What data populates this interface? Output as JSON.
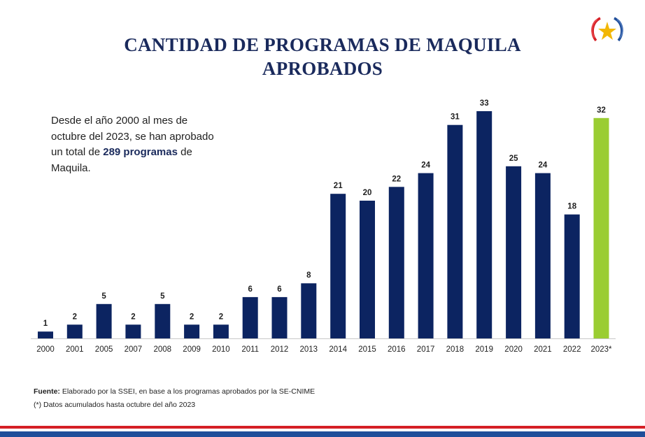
{
  "title_line1": "CANTIDAD DE PROGRAMAS DE MAQUILA",
  "title_line2": "APROBADOS",
  "note": {
    "text1": "Desde el año 2000 al mes de octubre del 2023, se han aprobado un total de ",
    "bold": "289 programas",
    "text2": " de Maquila."
  },
  "footer": {
    "source_label": "Fuente:",
    "source_text": " Elaborado por la SSEI, en base a los programas aprobados por la SE-CNIME",
    "footnote": "(*) Datos acumulados hasta octubre del año 2023"
  },
  "colors": {
    "bar": "#0c2461",
    "highlight": "#9acd32",
    "title": "#1a2a5c"
  },
  "chart_data": {
    "type": "bar",
    "categories": [
      "2000",
      "2001",
      "2005",
      "2007",
      "2008",
      "2009",
      "2010",
      "2011",
      "2012",
      "2013",
      "2014",
      "2015",
      "2016",
      "2017",
      "2018",
      "2019",
      "2020",
      "2021",
      "2022",
      "2023*"
    ],
    "values": [
      1,
      2,
      5,
      2,
      5,
      2,
      2,
      6,
      6,
      8,
      21,
      20,
      22,
      24,
      31,
      33,
      25,
      24,
      18,
      32
    ],
    "highlight_index": 19,
    "ylim": [
      0,
      33
    ],
    "grid": false,
    "legend": "none"
  }
}
